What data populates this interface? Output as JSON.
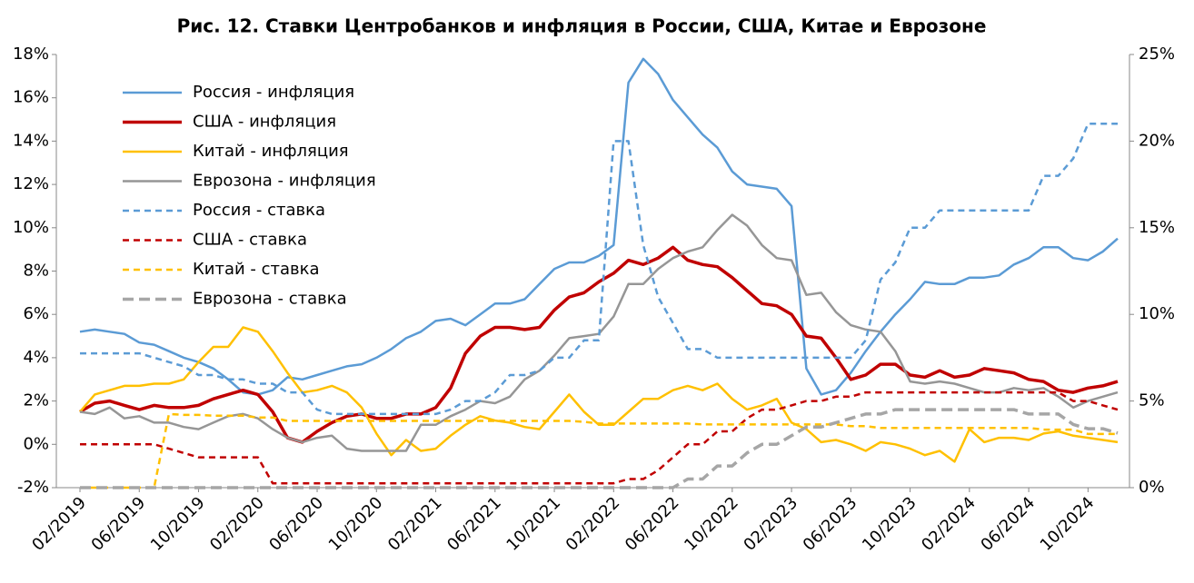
{
  "chart_data": {
    "type": "line",
    "title": "Рис. 12. Ставки Центробанков и инфляция в России, США, Китае и Еврозоне",
    "categories": [
      "02/2019",
      null,
      null,
      null,
      "06/2019",
      null,
      null,
      null,
      "10/2019",
      null,
      null,
      null,
      "02/2020",
      null,
      null,
      null,
      "06/2020",
      null,
      null,
      null,
      "10/2020",
      null,
      null,
      null,
      "02/2021",
      null,
      null,
      null,
      "06/2021",
      null,
      null,
      null,
      "10/2021",
      null,
      null,
      null,
      "02/2022",
      null,
      null,
      null,
      "06/2022",
      null,
      null,
      null,
      "10/2022",
      null,
      null,
      null,
      "02/2023",
      null,
      null,
      null,
      "06/2023",
      null,
      null,
      null,
      "10/2023",
      null,
      null,
      null,
      "02/2024",
      null,
      null,
      null,
      "06/2024",
      null,
      null,
      null,
      "10/2024",
      null,
      null
    ],
    "ylim": [
      -2,
      18
    ],
    "yticks": [
      {
        "value": -2,
        "label": "-2%"
      },
      {
        "value": 0,
        "label": "0%"
      },
      {
        "value": 2,
        "label": "2%"
      },
      {
        "value": 4,
        "label": "4%"
      },
      {
        "value": 6,
        "label": "6%"
      },
      {
        "value": 8,
        "label": "8%"
      },
      {
        "value": 10,
        "label": "10%"
      },
      {
        "value": 12,
        "label": "12%"
      },
      {
        "value": 14,
        "label": "14%"
      },
      {
        "value": 16,
        "label": "16%"
      },
      {
        "value": 18,
        "label": "18%"
      }
    ],
    "y2lim": [
      0,
      25
    ],
    "y2ticks": [
      {
        "value": 0,
        "label": "0%"
      },
      {
        "value": 5,
        "label": "5%"
      },
      {
        "value": 10,
        "label": "10%"
      },
      {
        "value": 15,
        "label": "15%"
      },
      {
        "value": 20,
        "label": "20%"
      },
      {
        "value": 25,
        "label": "25%"
      }
    ],
    "grid": false,
    "legend": "upper left",
    "series": [
      {
        "name": "Россия - инфляция",
        "color": "#5b9bd5",
        "dashed": false,
        "values": [
          5.2,
          5.3,
          5.2,
          5.1,
          4.7,
          4.6,
          4.3,
          4.0,
          3.8,
          3.5,
          3.0,
          2.4,
          2.3,
          2.5,
          3.1,
          3.0,
          3.2,
          3.4,
          3.6,
          3.7,
          4.0,
          4.4,
          4.9,
          5.2,
          5.7,
          5.8,
          5.5,
          6.0,
          6.5,
          6.5,
          6.7,
          7.4,
          8.1,
          8.4,
          8.4,
          8.7,
          9.2,
          16.7,
          17.8,
          17.1,
          15.9,
          15.1,
          14.3,
          13.7,
          12.6,
          12.0,
          11.9,
          11.8,
          11.0,
          3.5,
          2.3,
          2.5,
          3.3,
          4.3,
          5.2,
          6.0,
          6.7,
          7.5,
          7.4,
          7.4,
          7.7,
          7.7,
          7.8,
          8.3,
          8.6,
          9.1,
          9.1,
          8.6,
          8.5,
          8.9,
          9.5
        ]
      },
      {
        "name": "США - инфляция",
        "color": "#c00000",
        "dashed": false,
        "values": [
          1.5,
          1.9,
          2.0,
          1.8,
          1.6,
          1.8,
          1.7,
          1.7,
          1.8,
          2.1,
          2.3,
          2.5,
          2.3,
          1.5,
          0.3,
          0.1,
          0.6,
          1.0,
          1.3,
          1.4,
          1.2,
          1.2,
          1.4,
          1.4,
          1.7,
          2.6,
          4.2,
          5.0,
          5.4,
          5.4,
          5.3,
          5.4,
          6.2,
          6.8,
          7.0,
          7.5,
          7.9,
          8.5,
          8.3,
          8.6,
          9.1,
          8.5,
          8.3,
          8.2,
          7.7,
          7.1,
          6.5,
          6.4,
          6.0,
          5.0,
          4.9,
          4.0,
          3.0,
          3.2,
          3.7,
          3.7,
          3.2,
          3.1,
          3.4,
          3.1,
          3.2,
          3.5,
          3.4,
          3.3,
          3.0,
          2.9,
          2.5,
          2.4,
          2.6,
          2.7,
          2.9
        ]
      },
      {
        "name": "Китай - инфляция",
        "color": "#ffc000",
        "dashed": false,
        "values": [
          1.5,
          2.3,
          2.5,
          2.7,
          2.7,
          2.8,
          2.8,
          3.0,
          3.8,
          4.5,
          4.5,
          5.4,
          5.2,
          4.3,
          3.3,
          2.4,
          2.5,
          2.7,
          2.4,
          1.7,
          0.5,
          -0.5,
          0.2,
          -0.3,
          -0.2,
          0.4,
          0.9,
          1.3,
          1.1,
          1.0,
          0.8,
          0.7,
          1.5,
          2.3,
          1.5,
          0.9,
          0.9,
          1.5,
          2.1,
          2.1,
          2.5,
          2.7,
          2.5,
          2.8,
          2.1,
          1.6,
          1.8,
          2.1,
          1.0,
          0.7,
          0.1,
          0.2,
          0.0,
          -0.3,
          0.1,
          0.0,
          -0.2,
          -0.5,
          -0.3,
          -0.8,
          0.7,
          0.1,
          0.3,
          0.3,
          0.2,
          0.5,
          0.6,
          0.4,
          0.3,
          0.2,
          0.1
        ]
      },
      {
        "name": "Еврозона - инфляция",
        "color": "#969696",
        "dashed": false,
        "values": [
          1.5,
          1.4,
          1.7,
          1.2,
          1.3,
          1.0,
          1.0,
          0.8,
          0.7,
          1.0,
          1.3,
          1.4,
          1.2,
          0.7,
          0.3,
          0.1,
          0.3,
          0.4,
          -0.2,
          -0.3,
          -0.3,
          -0.3,
          -0.3,
          0.9,
          0.9,
          1.3,
          1.6,
          2.0,
          1.9,
          2.2,
          3.0,
          3.4,
          4.1,
          4.9,
          5.0,
          5.1,
          5.9,
          7.4,
          7.4,
          8.1,
          8.6,
          8.9,
          9.1,
          9.9,
          10.6,
          10.1,
          9.2,
          8.6,
          8.5,
          6.9,
          7.0,
          6.1,
          5.5,
          5.3,
          5.2,
          4.3,
          2.9,
          2.8,
          2.9,
          2.8,
          2.6,
          2.4,
          2.4,
          2.6,
          2.5,
          2.6,
          2.2,
          1.7,
          2.0,
          2.2,
          2.4
        ]
      },
      {
        "name": "Россия - ставка",
        "color": "#5b9bd5",
        "dashed": true,
        "axis": "y2",
        "values": [
          7.75,
          7.75,
          7.75,
          7.75,
          7.75,
          7.5,
          7.25,
          7.0,
          6.5,
          6.5,
          6.25,
          6.25,
          6.0,
          6.0,
          5.5,
          5.5,
          4.5,
          4.25,
          4.25,
          4.25,
          4.25,
          4.25,
          4.25,
          4.25,
          4.25,
          4.5,
          5.0,
          5.0,
          5.5,
          6.5,
          6.5,
          6.75,
          7.5,
          7.5,
          8.5,
          8.5,
          20,
          20,
          14,
          11,
          9.5,
          8,
          8,
          7.5,
          7.5,
          7.5,
          7.5,
          7.5,
          7.5,
          7.5,
          7.5,
          7.5,
          7.5,
          8.5,
          12,
          13,
          15,
          15,
          16,
          16,
          16,
          16,
          16,
          16,
          16,
          18,
          18,
          19,
          21,
          21,
          21
        ]
      },
      {
        "name": "США - ставка",
        "color": "#c00000",
        "dashed": true,
        "axis": "y2",
        "values": [
          2.5,
          2.5,
          2.5,
          2.5,
          2.5,
          2.5,
          2.25,
          2.0,
          1.75,
          1.75,
          1.75,
          1.75,
          1.75,
          0.25,
          0.25,
          0.25,
          0.25,
          0.25,
          0.25,
          0.25,
          0.25,
          0.25,
          0.25,
          0.25,
          0.25,
          0.25,
          0.25,
          0.25,
          0.25,
          0.25,
          0.25,
          0.25,
          0.25,
          0.25,
          0.25,
          0.25,
          0.25,
          0.5,
          0.5,
          1.0,
          1.75,
          2.5,
          2.5,
          3.25,
          3.25,
          4.0,
          4.5,
          4.5,
          4.75,
          5.0,
          5.0,
          5.25,
          5.25,
          5.5,
          5.5,
          5.5,
          5.5,
          5.5,
          5.5,
          5.5,
          5.5,
          5.5,
          5.5,
          5.5,
          5.5,
          5.5,
          5.5,
          5.0,
          5.0,
          4.75,
          4.5
        ]
      },
      {
        "name": "Китай - ставка",
        "color": "#ffc000",
        "dashed": true,
        "axis": "y2",
        "values": [
          0,
          0,
          0,
          0,
          0,
          0,
          4.25,
          4.2,
          4.2,
          4.15,
          4.15,
          4.15,
          4.05,
          4.05,
          3.85,
          3.85,
          3.85,
          3.85,
          3.85,
          3.85,
          3.85,
          3.85,
          3.85,
          3.85,
          3.85,
          3.85,
          3.85,
          3.85,
          3.85,
          3.85,
          3.85,
          3.85,
          3.85,
          3.85,
          3.8,
          3.7,
          3.7,
          3.7,
          3.7,
          3.7,
          3.7,
          3.7,
          3.65,
          3.65,
          3.65,
          3.65,
          3.65,
          3.65,
          3.65,
          3.65,
          3.65,
          3.65,
          3.55,
          3.55,
          3.45,
          3.45,
          3.45,
          3.45,
          3.45,
          3.45,
          3.45,
          3.45,
          3.45,
          3.45,
          3.45,
          3.35,
          3.35,
          3.35,
          3.1,
          3.1,
          3.1
        ]
      },
      {
        "name": "Еврозона - ставка",
        "color": "#a6a6a6",
        "dashed": true,
        "axis": "y2",
        "values": [
          0,
          0,
          0,
          0,
          0,
          0,
          0,
          0,
          0,
          0,
          0,
          0,
          0,
          0,
          0,
          0,
          0,
          0,
          0,
          0,
          0,
          0,
          0,
          0,
          0,
          0,
          0,
          0,
          0,
          0,
          0,
          0,
          0,
          0,
          0,
          0,
          0,
          0,
          0,
          0,
          0,
          0.5,
          0.5,
          1.25,
          1.25,
          2.0,
          2.5,
          2.5,
          3.0,
          3.5,
          3.5,
          3.75,
          4.0,
          4.25,
          4.25,
          4.5,
          4.5,
          4.5,
          4.5,
          4.5,
          4.5,
          4.5,
          4.5,
          4.5,
          4.25,
          4.25,
          4.25,
          3.65,
          3.4,
          3.4,
          3.15
        ]
      }
    ]
  }
}
